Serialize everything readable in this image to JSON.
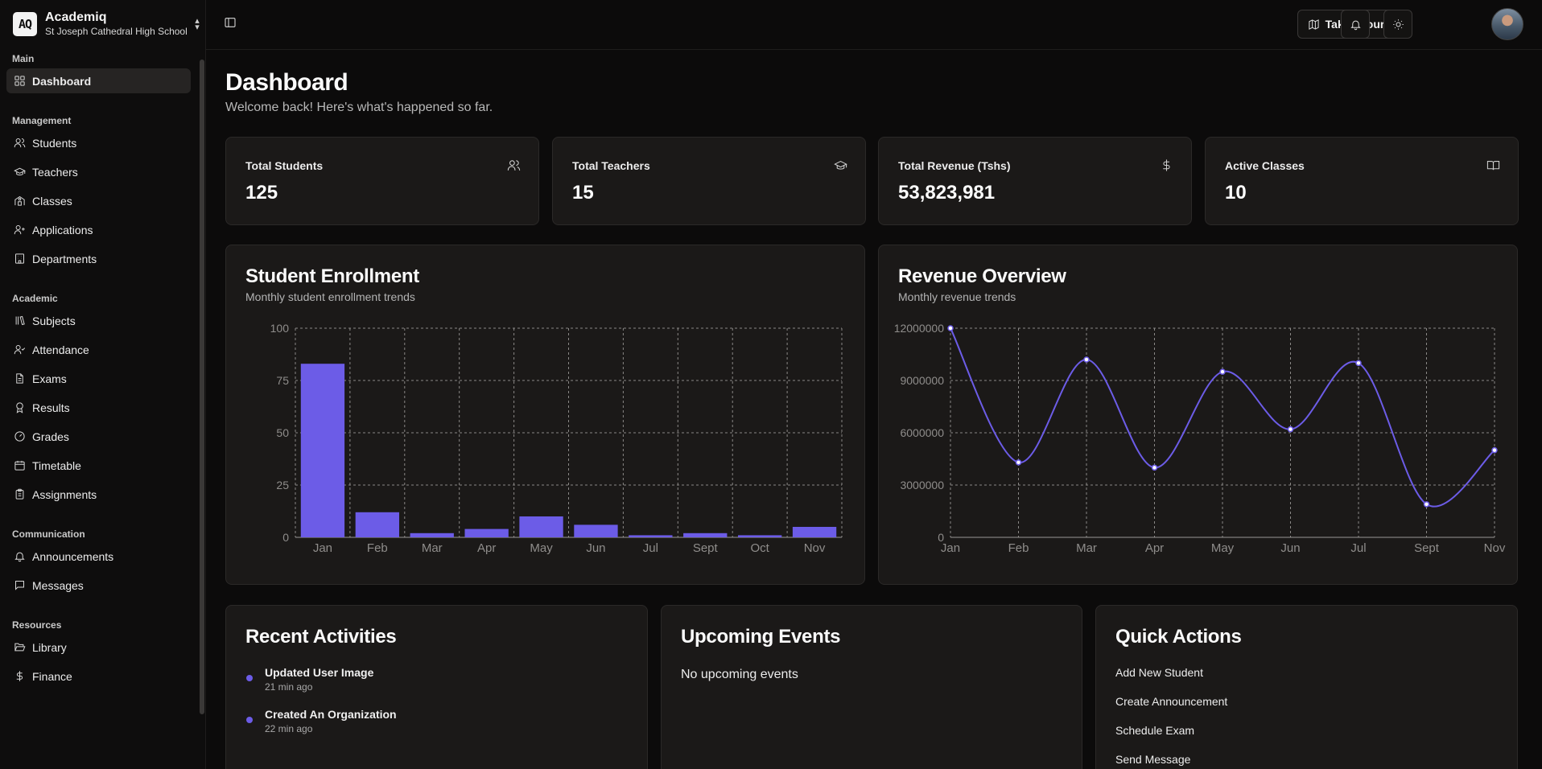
{
  "brand": {
    "logo_text": "AQ",
    "name": "Academiq",
    "school": "St Joseph Cathedral High School"
  },
  "sidebar": {
    "groups": [
      {
        "label": "Main",
        "items": [
          {
            "label": "Dashboard",
            "icon": "layout-grid-icon",
            "active": true
          }
        ]
      },
      {
        "label": "Management",
        "items": [
          {
            "label": "Students",
            "icon": "users-icon"
          },
          {
            "label": "Teachers",
            "icon": "graduation-cap-icon"
          },
          {
            "label": "Classes",
            "icon": "school-icon"
          },
          {
            "label": "Applications",
            "icon": "user-plus-icon"
          },
          {
            "label": "Departments",
            "icon": "building-icon"
          }
        ]
      },
      {
        "label": "Academic",
        "items": [
          {
            "label": "Subjects",
            "icon": "library-icon"
          },
          {
            "label": "Attendance",
            "icon": "user-check-icon"
          },
          {
            "label": "Exams",
            "icon": "file-text-icon"
          },
          {
            "label": "Results",
            "icon": "award-icon"
          },
          {
            "label": "Grades",
            "icon": "gauge-icon"
          },
          {
            "label": "Timetable",
            "icon": "calendar-icon"
          },
          {
            "label": "Assignments",
            "icon": "clipboard-icon"
          }
        ]
      },
      {
        "label": "Communication",
        "items": [
          {
            "label": "Announcements",
            "icon": "bell-icon"
          },
          {
            "label": "Messages",
            "icon": "message-icon"
          }
        ]
      },
      {
        "label": "Resources",
        "items": [
          {
            "label": "Library",
            "icon": "folder-open-icon"
          },
          {
            "label": "Finance",
            "icon": "dollar-icon"
          }
        ]
      }
    ]
  },
  "header": {
    "tour_label": "Take a tour"
  },
  "page": {
    "title": "Dashboard",
    "subtitle": "Welcome back! Here's what's happened so far."
  },
  "stats": [
    {
      "label": "Total Students",
      "value": "125",
      "icon": "users-icon"
    },
    {
      "label": "Total Teachers",
      "value": "15",
      "icon": "graduation-cap-icon"
    },
    {
      "label": "Total Revenue (Tshs)",
      "value": "53,823,981",
      "icon": "dollar-icon"
    },
    {
      "label": "Active Classes",
      "value": "10",
      "icon": "book-open-icon"
    }
  ],
  "enrollment": {
    "title": "Student Enrollment",
    "subtitle": "Monthly student enrollment trends"
  },
  "revenue": {
    "title": "Revenue Overview",
    "subtitle": "Monthly revenue trends"
  },
  "chart_data": [
    {
      "type": "bar",
      "title": "Student Enrollment",
      "subtitle": "Monthly student enrollment trends",
      "categories": [
        "Jan",
        "Feb",
        "Mar",
        "Apr",
        "May",
        "Jun",
        "Jul",
        "Sept",
        "Oct",
        "Nov"
      ],
      "values": [
        83,
        12,
        2,
        4,
        10,
        6,
        1,
        2,
        1,
        5
      ],
      "ylim": [
        0,
        100
      ],
      "yticks": [
        0,
        25,
        50,
        75,
        100
      ],
      "grid": true,
      "color": "#6c5ce7"
    },
    {
      "type": "line",
      "title": "Revenue Overview",
      "subtitle": "Monthly revenue trends",
      "categories": [
        "Jan",
        "Feb",
        "Mar",
        "Apr",
        "May",
        "Jun",
        "Jul",
        "Sept",
        "Nov"
      ],
      "values": [
        12000000,
        4300000,
        10200000,
        4000000,
        9500000,
        6200000,
        10000000,
        1900000,
        5000000
      ],
      "ylim": [
        0,
        12000000
      ],
      "yticks": [
        0,
        3000000,
        6000000,
        9000000,
        12000000
      ],
      "ytick_labels": [
        "0",
        "3000000",
        "6000000",
        "9000000",
        "12000000"
      ],
      "grid": true,
      "color": "#6c5ce7"
    }
  ],
  "activities": {
    "title": "Recent Activities",
    "items": [
      {
        "title": "Updated User Image",
        "time": "21 min ago"
      },
      {
        "title": "Created An Organization",
        "time": "22 min ago"
      }
    ]
  },
  "events": {
    "title": "Upcoming Events",
    "empty": "No upcoming events"
  },
  "quick_actions": {
    "title": "Quick Actions",
    "items": [
      "Add New Student",
      "Create Announcement",
      "Schedule Exam",
      "Send Message"
    ]
  }
}
